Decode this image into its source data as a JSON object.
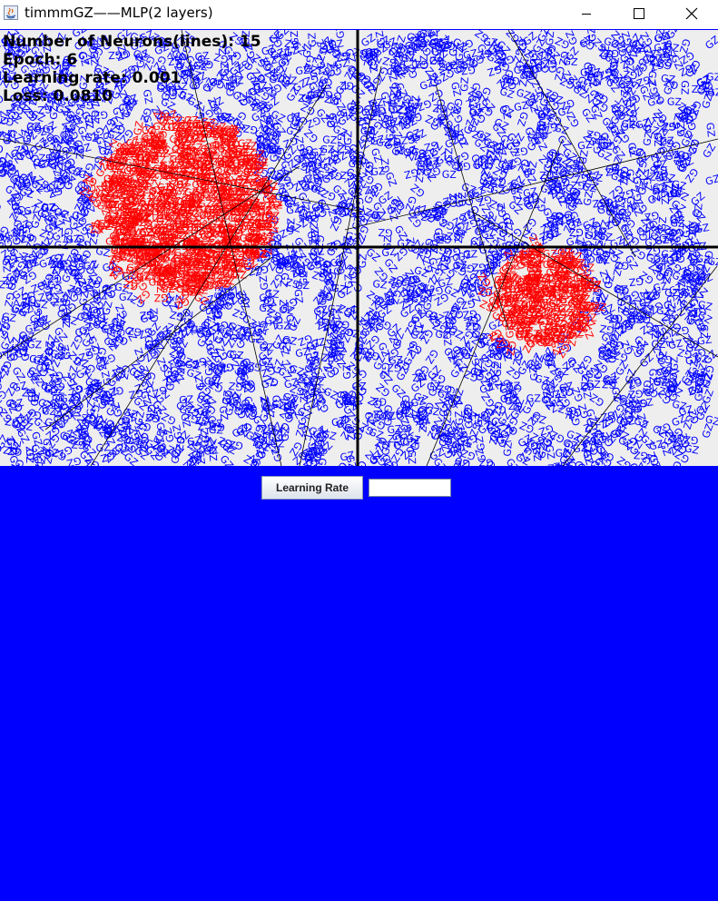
{
  "window": {
    "title": "timmmGZ——MLP(2 layers)",
    "background_color": "#0000ff"
  },
  "stats": {
    "neurons_label": "Number of Neurons(lines):",
    "neurons_value": "15",
    "epoch_label": "Epoch:",
    "epoch_value": "6",
    "learning_rate_label": "Learning rate:",
    "learning_rate_value": "0.001",
    "loss_label": "Loss:",
    "loss_value": "0.0810"
  },
  "canvas": {
    "point_label": "GZ",
    "class_a_color": "#0000ff",
    "class_b_color": "#ff0000",
    "axis_color": "#000000"
  },
  "controls": {
    "learning_rate_button": "Learning Rate",
    "learning_rate_input_value": ""
  }
}
